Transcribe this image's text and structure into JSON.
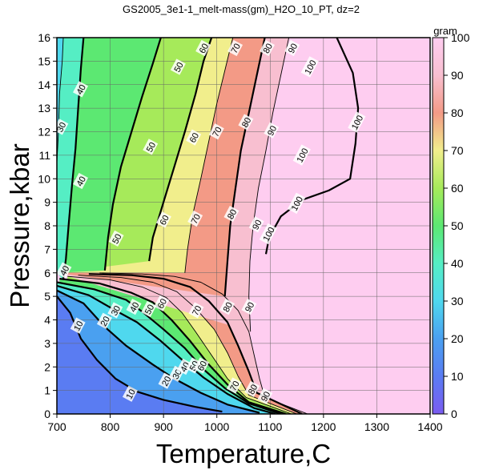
{
  "chart_data": {
    "type": "heatmap",
    "title": "GS2005_3e1-1_melt-mass(gm)_H2O_10_PT, dz=2",
    "xlabel": "Temperature,C",
    "ylabel": "Pressure,kbar",
    "xlim": [
      700,
      1400
    ],
    "ylim": [
      0,
      16
    ],
    "x_ticks": [
      "700",
      "800",
      "900",
      "1000",
      "1100",
      "1200",
      "1300",
      "1400"
    ],
    "y_ticks": [
      "0",
      "1",
      "2",
      "3",
      "4",
      "5",
      "6",
      "7",
      "8",
      "9",
      "10",
      "11",
      "12",
      "13",
      "14",
      "15",
      "16"
    ],
    "grid": true,
    "colorbar": {
      "label": "gram",
      "range": [
        0,
        100
      ],
      "ticks": [
        "0",
        "10",
        "20",
        "30",
        "40",
        "50",
        "60",
        "70",
        "80",
        "90",
        "100"
      ],
      "stops": [
        {
          "v": 0,
          "color": "#7a5cf0"
        },
        {
          "v": 10,
          "color": "#5a7cf2"
        },
        {
          "v": 20,
          "color": "#4aa0f0"
        },
        {
          "v": 30,
          "color": "#4fd8ee"
        },
        {
          "v": 40,
          "color": "#55eec4"
        },
        {
          "v": 50,
          "color": "#5ce872"
        },
        {
          "v": 60,
          "color": "#a6ea5a"
        },
        {
          "v": 70,
          "color": "#f1ee8c"
        },
        {
          "v": 80,
          "color": "#f39a86"
        },
        {
          "v": 90,
          "color": "#f8bfd0"
        },
        {
          "v": 100,
          "color": "#fecdf0"
        }
      ]
    },
    "contours": [
      {
        "level": 10,
        "label": "10",
        "bold": true,
        "points": [
          [
            700,
            5.0
          ],
          [
            725,
            4.3
          ],
          [
            745,
            3.2
          ],
          [
            775,
            2.3
          ],
          [
            810,
            1.5
          ],
          [
            850,
            0.95
          ],
          [
            900,
            0.6
          ],
          [
            960,
            0.3
          ],
          [
            1010,
            0.1
          ]
        ],
        "labels": [
          {
            "text": "10",
            "x": 740,
            "y": 3.75
          },
          {
            "text": "10",
            "x": 838,
            "y": 0.85
          }
        ]
      },
      {
        "level": 20,
        "label": "20",
        "bold": true,
        "points": [
          [
            700,
            5.25
          ],
          [
            750,
            4.7
          ],
          [
            790,
            3.7
          ],
          [
            830,
            2.9
          ],
          [
            880,
            2.1
          ],
          [
            920,
            1.5
          ],
          [
            970,
            0.9
          ],
          [
            1020,
            0.4
          ],
          [
            1080,
            0.05
          ]
        ],
        "labels": [
          {
            "text": "20",
            "x": 790,
            "y": 3.95
          },
          {
            "text": "20",
            "x": 905,
            "y": 1.4
          }
        ]
      },
      {
        "level": 30,
        "label": "30",
        "bold": true,
        "points": [
          [
            700,
            5.45
          ],
          [
            760,
            5.05
          ],
          [
            810,
            4.4
          ],
          [
            850,
            3.9
          ],
          [
            895,
            3.1
          ],
          [
            935,
            2.3
          ],
          [
            975,
            1.55
          ],
          [
            1020,
            0.85
          ],
          [
            1070,
            0.25
          ],
          [
            1110,
            0.0
          ]
        ],
        "labels": [
          {
            "text": "30",
            "x": 810,
            "y": 4.4
          },
          {
            "text": "30",
            "x": 925,
            "y": 1.7
          }
        ]
      },
      {
        "level": 40,
        "label": "40",
        "bold": true,
        "points": [
          [
            700,
            5.6
          ],
          [
            770,
            5.3
          ],
          [
            830,
            4.85
          ],
          [
            860,
            4.35
          ],
          [
            900,
            3.6
          ],
          [
            940,
            2.8
          ],
          [
            975,
            1.9
          ],
          [
            1015,
            1.1
          ],
          [
            1060,
            0.45
          ],
          [
            1120,
            0.0
          ]
        ],
        "labels": [
          {
            "text": "40",
            "x": 845,
            "y": 4.55
          },
          {
            "text": "40",
            "x": 940,
            "y": 2.0
          }
        ]
      },
      {
        "level": 50,
        "label": "50",
        "bold": true,
        "points": [
          [
            705,
            5.75
          ],
          [
            780,
            5.55
          ],
          [
            840,
            5.15
          ],
          [
            880,
            4.75
          ],
          [
            915,
            4.0
          ],
          [
            950,
            3.1
          ],
          [
            985,
            2.1
          ],
          [
            1020,
            1.25
          ],
          [
            1060,
            0.5
          ],
          [
            1130,
            0.0
          ]
        ],
        "labels": [
          {
            "text": "50",
            "x": 873,
            "y": 4.45
          },
          {
            "text": "50",
            "x": 957,
            "y": 2.05
          }
        ]
      },
      {
        "level": 60,
        "label": "60",
        "bold": false,
        "points": [
          [
            720,
            5.85
          ],
          [
            800,
            5.7
          ],
          [
            860,
            5.4
          ],
          [
            905,
            4.95
          ],
          [
            935,
            4.3
          ],
          [
            960,
            3.5
          ],
          [
            990,
            2.5
          ],
          [
            1020,
            1.5
          ],
          [
            1055,
            0.7
          ],
          [
            1140,
            0.0
          ]
        ],
        "labels": [
          {
            "text": "60",
            "x": 897,
            "y": 4.7
          },
          {
            "text": "60",
            "x": 972,
            "y": 2.05
          }
        ]
      },
      {
        "level": 70,
        "label": "70",
        "bold": false,
        "points": [
          [
            740,
            5.9
          ],
          [
            820,
            5.8
          ],
          [
            880,
            5.6
          ],
          [
            925,
            5.2
          ],
          [
            960,
            4.5
          ],
          [
            995,
            3.6
          ],
          [
            1020,
            2.6
          ],
          [
            1040,
            1.6
          ],
          [
            1060,
            0.8
          ],
          [
            1150,
            0.0
          ]
        ],
        "labels": [
          {
            "text": "70",
            "x": 1033,
            "y": 1.2
          }
        ]
      },
      {
        "level": 80,
        "label": "80",
        "bold": true,
        "points": [
          [
            760,
            5.95
          ],
          [
            840,
            5.9
          ],
          [
            900,
            5.75
          ],
          [
            950,
            5.4
          ],
          [
            985,
            4.8
          ],
          [
            1020,
            3.9
          ],
          [
            1040,
            2.9
          ],
          [
            1060,
            1.8
          ],
          [
            1075,
            0.9
          ],
          [
            1160,
            0.0
          ]
        ],
        "labels": [
          {
            "text": "80",
            "x": 1067,
            "y": 1.05
          }
        ]
      },
      {
        "level": 90,
        "label": "90",
        "bold": false,
        "points": [
          [
            780,
            6.0
          ],
          [
            860,
            5.95
          ],
          [
            920,
            5.85
          ],
          [
            970,
            5.6
          ],
          [
            1010,
            5.1
          ],
          [
            1040,
            4.4
          ],
          [
            1060,
            3.5
          ],
          [
            1070,
            2.5
          ],
          [
            1080,
            1.5
          ],
          [
            1090,
            0.7
          ],
          [
            1170,
            0.0
          ]
        ],
        "labels": [
          {
            "text": "90",
            "x": 1091,
            "y": 0.75
          }
        ]
      },
      {
        "level": 40,
        "label": "40",
        "bold": true,
        "points": [
          [
            712,
            5.7
          ],
          [
            717,
            6.6
          ],
          [
            722,
            8.0
          ],
          [
            728,
            9.6
          ],
          [
            735,
            11.3
          ],
          [
            740,
            13.0
          ],
          [
            745,
            14.7
          ],
          [
            750,
            16
          ]
        ],
        "labels": [
          {
            "text": "40",
            "x": 714,
            "y": 6.1
          },
          {
            "text": "40",
            "x": 745,
            "y": 13.8
          },
          {
            "text": "40",
            "x": 745,
            "y": 9.9
          }
        ]
      },
      {
        "level": 30,
        "label": "30",
        "bold": false,
        "points": [
          [
            700,
            10.7
          ],
          [
            703,
            12.0
          ],
          [
            705,
            13.6
          ],
          [
            710,
            15.0
          ],
          [
            712,
            16
          ]
        ],
        "labels": [
          {
            "text": "30",
            "x": 708,
            "y": 12.2
          }
        ]
      },
      {
        "level": 50,
        "label": "50",
        "bold": true,
        "points": [
          [
            790,
            6.1
          ],
          [
            796,
            7.5
          ],
          [
            805,
            8.9
          ],
          [
            820,
            10.5
          ],
          [
            840,
            12.0
          ],
          [
            860,
            13.5
          ],
          [
            880,
            14.9
          ],
          [
            895,
            16
          ]
        ],
        "labels": [
          {
            "text": "50",
            "x": 812,
            "y": 7.45
          },
          {
            "text": "50",
            "x": 876,
            "y": 11.35
          },
          {
            "text": "50",
            "x": 928,
            "y": 14.75
          }
        ]
      },
      {
        "level": 60,
        "label": "60",
        "bold": true,
        "points": [
          [
            873,
            6.5
          ],
          [
            880,
            7.5
          ],
          [
            900,
            9.0
          ],
          [
            920,
            10.5
          ],
          [
            940,
            12.0
          ],
          [
            960,
            13.6
          ],
          [
            975,
            15.0
          ],
          [
            990,
            16
          ]
        ],
        "labels": [
          {
            "text": "60",
            "x": 901,
            "y": 8.25
          },
          {
            "text": "60",
            "x": 957,
            "y": 11.75
          },
          {
            "text": "60",
            "x": 975,
            "y": 15.55
          }
        ]
      },
      {
        "level": 70,
        "label": "70",
        "bold": false,
        "points": [
          [
            940,
            6.0
          ],
          [
            945,
            7.0
          ],
          [
            955,
            8.5
          ],
          [
            970,
            10.0
          ],
          [
            985,
            11.6
          ],
          [
            1000,
            13.2
          ],
          [
            1015,
            14.6
          ],
          [
            1030,
            16
          ]
        ],
        "labels": [
          {
            "text": "70",
            "x": 960,
            "y": 8.3
          },
          {
            "text": "70",
            "x": 1000,
            "y": 12.0
          },
          {
            "text": "70",
            "x": 1035,
            "y": 15.55
          },
          {
            "text": "70",
            "x": 962,
            "y": 4.4
          }
        ]
      },
      {
        "level": 80,
        "label": "80",
        "bold": true,
        "points": [
          [
            1015,
            5.0
          ],
          [
            1020,
            6.5
          ],
          [
            1025,
            8.0
          ],
          [
            1035,
            9.6
          ],
          [
            1045,
            11.2
          ],
          [
            1060,
            12.8
          ],
          [
            1075,
            14.4
          ],
          [
            1090,
            16
          ]
        ],
        "labels": [
          {
            "text": "80",
            "x": 1028,
            "y": 8.5
          },
          {
            "text": "80",
            "x": 1055,
            "y": 12.4
          },
          {
            "text": "80",
            "x": 1095,
            "y": 15.55
          },
          {
            "text": "80",
            "x": 1020,
            "y": 4.55
          }
        ]
      },
      {
        "level": 90,
        "label": "90",
        "bold": false,
        "points": [
          [
            1063,
            3.5
          ],
          [
            1060,
            5.0
          ],
          [
            1062,
            6.5
          ],
          [
            1068,
            8.0
          ],
          [
            1078,
            9.6
          ],
          [
            1092,
            11.2
          ],
          [
            1105,
            12.8
          ],
          [
            1120,
            14.4
          ],
          [
            1135,
            16
          ]
        ],
        "labels": [
          {
            "text": "90",
            "x": 1075,
            "y": 8.05
          },
          {
            "text": "90",
            "x": 1103,
            "y": 12.05
          },
          {
            "text": "90",
            "x": 1142,
            "y": 15.55
          },
          {
            "text": "90",
            "x": 1061,
            "y": 4.55
          }
        ]
      },
      {
        "level": 100,
        "label": "100",
        "bold": true,
        "points": [
          [
            1092,
            6.8
          ],
          [
            1098,
            7.5
          ],
          [
            1120,
            8.4
          ],
          [
            1160,
            9.1
          ],
          [
            1210,
            9.5
          ],
          [
            1250,
            10.0
          ],
          [
            1260,
            11.5
          ],
          [
            1265,
            13.0
          ],
          [
            1255,
            14.5
          ],
          [
            1225,
            16
          ]
        ],
        "labels": [
          {
            "text": "100",
            "x": 1097,
            "y": 7.65
          },
          {
            "text": "100",
            "x": 1150,
            "y": 8.95
          },
          {
            "text": "100",
            "x": 1263,
            "y": 12.4
          },
          {
            "text": "100",
            "x": 1160,
            "y": 11.0
          },
          {
            "text": "100",
            "x": 1175,
            "y": 14.75
          }
        ]
      }
    ]
  }
}
